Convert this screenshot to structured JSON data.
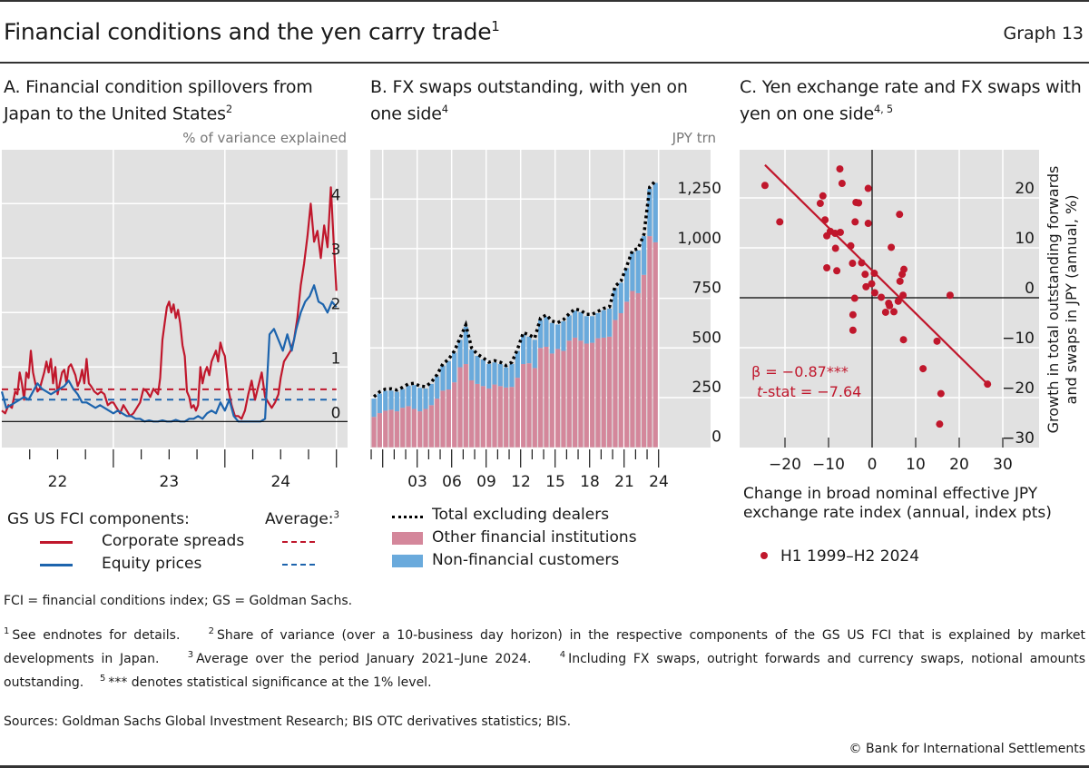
{
  "header": {
    "title": "Financial conditions and the yen carry trade",
    "title_sup": "1",
    "graph_number": "Graph 13"
  },
  "chart_data": [
    {
      "id": "A",
      "type": "line",
      "title": "A. Financial condition spillovers from Japan to the United States",
      "title_sup": "2",
      "ylabel": "% of variance explained",
      "ylim": [
        -0.5,
        5.0
      ],
      "yticks": [
        0,
        1,
        2,
        3,
        4
      ],
      "xlim": [
        2022.0,
        2025.1
      ],
      "xtick_labels": [
        {
          "label": "22",
          "x": 2022.5
        },
        {
          "label": "23",
          "x": 2023.5
        },
        {
          "label": "24",
          "x": 2024.5
        }
      ],
      "grid": true,
      "legend": {
        "heading": "GS US FCI components:",
        "avg_heading": "Average:",
        "avg_sup": "3",
        "items": [
          "Corporate spreads",
          "Equity prices"
        ]
      },
      "series": [
        {
          "name": "Corporate spreads",
          "color": "#c0172c",
          "average": 0.59,
          "x": [
            2022.0,
            2022.03,
            2022.06,
            2022.09,
            2022.12,
            2022.14,
            2022.16,
            2022.18,
            2022.2,
            2022.22,
            2022.24,
            2022.26,
            2022.28,
            2022.3,
            2022.32,
            2022.34,
            2022.36,
            2022.38,
            2022.4,
            2022.42,
            2022.44,
            2022.46,
            2022.48,
            2022.5,
            2022.52,
            2022.54,
            2022.56,
            2022.58,
            2022.6,
            2022.62,
            2022.64,
            2022.66,
            2022.68,
            2022.7,
            2022.72,
            2022.74,
            2022.76,
            2022.78,
            2022.8,
            2022.83,
            2022.86,
            2022.89,
            2022.92,
            2022.95,
            2022.98,
            2023.0,
            2023.03,
            2023.06,
            2023.09,
            2023.12,
            2023.15,
            2023.18,
            2023.21,
            2023.24,
            2023.27,
            2023.3,
            2023.33,
            2023.36,
            2023.38,
            2023.4,
            2023.42,
            2023.44,
            2023.46,
            2023.48,
            2023.5,
            2023.52,
            2023.54,
            2023.56,
            2023.58,
            2023.6,
            2023.62,
            2023.64,
            2023.66,
            2023.68,
            2023.7,
            2023.72,
            2023.74,
            2023.76,
            2023.78,
            2023.8,
            2023.82,
            2023.84,
            2023.86,
            2023.88,
            2023.9,
            2023.92,
            2023.94,
            2023.96,
            2023.98,
            2024.0,
            2024.03,
            2024.06,
            2024.09,
            2024.12,
            2024.15,
            2024.18,
            2024.21,
            2024.24,
            2024.27,
            2024.3,
            2024.33,
            2024.36,
            2024.39,
            2024.42,
            2024.45,
            2024.48,
            2024.5,
            2024.53,
            2024.56,
            2024.59,
            2024.62,
            2024.65,
            2024.68,
            2024.71,
            2024.74,
            2024.77,
            2024.8,
            2024.83,
            2024.86,
            2024.89,
            2024.92,
            2024.95,
            2024.98,
            2025.0
          ],
          "y": [
            0.2,
            0.15,
            0.3,
            0.25,
            0.55,
            0.5,
            0.9,
            0.7,
            0.4,
            0.9,
            0.8,
            1.3,
            0.9,
            0.7,
            0.55,
            0.6,
            0.75,
            0.9,
            1.1,
            0.9,
            1.15,
            0.7,
            1.0,
            0.5,
            0.7,
            0.9,
            0.95,
            0.7,
            1.0,
            1.05,
            0.95,
            0.85,
            0.65,
            0.75,
            0.95,
            0.7,
            1.15,
            0.7,
            0.65,
            0.55,
            0.5,
            0.55,
            0.5,
            0.3,
            0.35,
            0.35,
            0.25,
            0.15,
            0.3,
            0.2,
            0.1,
            0.15,
            0.25,
            0.35,
            0.6,
            0.55,
            0.45,
            0.6,
            0.55,
            0.5,
            0.8,
            1.5,
            1.8,
            2.1,
            2.2,
            2.0,
            2.15,
            1.9,
            2.05,
            1.8,
            1.4,
            1.2,
            0.55,
            0.45,
            0.25,
            0.3,
            0.2,
            0.3,
            1.0,
            0.7,
            0.9,
            1.0,
            0.85,
            1.1,
            1.2,
            1.3,
            1.1,
            1.45,
            1.3,
            1.2,
            0.6,
            0.3,
            0.1,
            0.1,
            0.05,
            0.2,
            0.5,
            0.75,
            0.4,
            0.65,
            0.9,
            0.45,
            0.35,
            0.25,
            0.35,
            0.5,
            0.8,
            1.1,
            1.2,
            1.3,
            1.5,
            1.9,
            2.5,
            2.9,
            3.4,
            4.0,
            3.3,
            3.5,
            3.0,
            3.6,
            3.2,
            4.3,
            3.1,
            2.4
          ]
        },
        {
          "name": "Equity prices",
          "color": "#1d64ad",
          "average": 0.4,
          "x": [
            2022.0,
            2022.04,
            2022.08,
            2022.12,
            2022.16,
            2022.2,
            2022.24,
            2022.28,
            2022.32,
            2022.36,
            2022.4,
            2022.44,
            2022.48,
            2022.52,
            2022.56,
            2022.6,
            2022.64,
            2022.68,
            2022.72,
            2022.76,
            2022.8,
            2022.84,
            2022.88,
            2022.92,
            2022.96,
            2023.0,
            2023.04,
            2023.08,
            2023.12,
            2023.16,
            2023.2,
            2023.24,
            2023.28,
            2023.32,
            2023.36,
            2023.4,
            2023.44,
            2023.48,
            2023.52,
            2023.56,
            2023.6,
            2023.64,
            2023.68,
            2023.72,
            2023.76,
            2023.8,
            2023.84,
            2023.88,
            2023.92,
            2023.96,
            2024.0,
            2024.04,
            2024.08,
            2024.12,
            2024.16,
            2024.2,
            2024.24,
            2024.28,
            2024.32,
            2024.36,
            2024.4,
            2024.44,
            2024.48,
            2024.52,
            2024.56,
            2024.6,
            2024.64,
            2024.68,
            2024.72,
            2024.76,
            2024.8,
            2024.84,
            2024.88,
            2024.92,
            2024.96,
            2025.0
          ],
          "y": [
            0.55,
            0.25,
            0.3,
            0.35,
            0.4,
            0.45,
            0.4,
            0.55,
            0.7,
            0.6,
            0.55,
            0.5,
            0.55,
            0.6,
            0.65,
            0.75,
            0.6,
            0.5,
            0.35,
            0.35,
            0.3,
            0.25,
            0.3,
            0.25,
            0.2,
            0.15,
            0.2,
            0.15,
            0.1,
            0.1,
            0.05,
            0.05,
            0.0,
            0.02,
            0.0,
            0.0,
            0.02,
            0.0,
            0.0,
            0.03,
            0.0,
            0.0,
            0.05,
            0.05,
            0.1,
            0.05,
            0.15,
            0.2,
            0.15,
            0.35,
            0.2,
            0.4,
            0.1,
            0.0,
            0.0,
            0.0,
            0.0,
            0.0,
            0.0,
            0.05,
            1.6,
            1.7,
            1.5,
            1.3,
            1.6,
            1.3,
            1.7,
            2.0,
            2.2,
            2.3,
            2.5,
            2.2,
            2.15,
            2.0,
            2.2,
            2.1
          ]
        }
      ]
    },
    {
      "id": "B",
      "type": "bar",
      "stacked": true,
      "title": "B. FX swaps outstanding, with yen on one side",
      "title_sup": "4",
      "ylabel": "JPY trn",
      "ylim": [
        0,
        1400
      ],
      "yticks": [
        0,
        250,
        500,
        750,
        1000,
        1250
      ],
      "ytick_labels": [
        "0",
        "250",
        "500",
        "750",
        "1,000",
        "1,250"
      ],
      "xtick_labels": [
        "03",
        "06",
        "09",
        "12",
        "15",
        "18",
        "21",
        "24"
      ],
      "grid": true,
      "categories_note": "half-yearly, H1 1999 to H2 2023",
      "series": [
        {
          "name": "Other financial institutions",
          "color": "#d4879b",
          "values": [
            153,
            172,
            184,
            189,
            181,
            199,
            207,
            193,
            181,
            193,
            212,
            245,
            285,
            291,
            327,
            403,
            419,
            337,
            319,
            308,
            296,
            316,
            308,
            301,
            304,
            350,
            419,
            423,
            399,
            500,
            506,
            472,
            495,
            485,
            537,
            552,
            537,
            522,
            526,
            549,
            552,
            557,
            641,
            675,
            733,
            787,
            776,
            868,
            1063,
            1032
          ]
        },
        {
          "name": "Non-financial customers",
          "color": "#6aaadc",
          "values": [
            92,
            98,
            100,
            96,
            98,
            94,
            103,
            120,
            118,
            103,
            107,
            112,
            126,
            143,
            149,
            138,
            188,
            154,
            141,
            134,
            123,
            111,
            111,
            101,
            115,
            135,
            149,
            134,
            142,
            141,
            151,
            154,
            123,
            149,
            127,
            135,
            143,
            138,
            134,
            126,
            138,
            141,
            161,
            153,
            169,
            195,
            215,
            195,
            238,
            299
          ]
        },
        {
          "name": "Total excluding dealers",
          "style": "dotted",
          "color": "#000000"
        }
      ],
      "legend": {
        "items": [
          "Total excluding dealers",
          "Other financial institutions",
          "Non-financial customers"
        ]
      }
    },
    {
      "id": "C",
      "type": "scatter",
      "title": "C. Yen exchange rate and FX swaps with yen on one side",
      "title_sup": "4, 5",
      "xlabel": "Change in broad nominal effective JPY exchange rate index (annual, index pts)",
      "ylabel": "Growth in total outstanding forwards and swaps in JPY (annual, %)",
      "xlim": [
        -30,
        35
      ],
      "ylim": [
        -30,
        30
      ],
      "xticks": [
        -20,
        -10,
        0,
        10,
        20,
        30
      ],
      "yticks": [
        -30,
        -20,
        -10,
        0,
        10,
        20
      ],
      "xtick_labels": [
        "−20",
        "−10",
        "0",
        "10",
        "20",
        "30"
      ],
      "ytick_labels": [
        "−30",
        "−20",
        "−10",
        "0",
        "10",
        "20"
      ],
      "grid": true,
      "color": "#c0172c",
      "annotation": {
        "beta": "β = −0.87***",
        "tstat_label": "t",
        "tstat_rest": "-stat = −7.64"
      },
      "regression": {
        "x": [
          -24.6,
          26.5
        ],
        "y": [
          26.6,
          -17.3
        ]
      },
      "legend": {
        "items": [
          "H1 1999–H2 2024"
        ]
      },
      "points": [
        [
          -24.6,
          22.5
        ],
        [
          -21.2,
          15.2
        ],
        [
          -7.4,
          25.8
        ],
        [
          -6.9,
          22.9
        ],
        [
          -0.9,
          21.9
        ],
        [
          -11.3,
          20.4
        ],
        [
          -11.9,
          18.9
        ],
        [
          -3.7,
          19.1
        ],
        [
          -3.1,
          19.0
        ],
        [
          -10.8,
          15.6
        ],
        [
          -3.9,
          15.2
        ],
        [
          -0.9,
          14.9
        ],
        [
          6.3,
          16.7
        ],
        [
          -9.6,
          13.3
        ],
        [
          -8.5,
          12.9
        ],
        [
          -7.3,
          13.1
        ],
        [
          -10.4,
          12.4
        ],
        [
          -8.4,
          9.9
        ],
        [
          -4.9,
          10.4
        ],
        [
          4.4,
          10.1
        ],
        [
          -4.5,
          6.9
        ],
        [
          -2.4,
          7.0
        ],
        [
          -10.4,
          6.0
        ],
        [
          -8.1,
          5.4
        ],
        [
          -1.6,
          4.7
        ],
        [
          0.5,
          4.9
        ],
        [
          7.3,
          5.7
        ],
        [
          6.9,
          4.7
        ],
        [
          6.4,
          3.3
        ],
        [
          -1.4,
          2.2
        ],
        [
          -0.1,
          2.8
        ],
        [
          0.6,
          1.0
        ],
        [
          2.1,
          0.1
        ],
        [
          7.1,
          0.5
        ],
        [
          6.0,
          -0.7
        ],
        [
          17.9,
          0.5
        ],
        [
          -4.0,
          -0.1
        ],
        [
          3.8,
          -1.1
        ],
        [
          4.0,
          -1.6
        ],
        [
          3.1,
          -2.9
        ],
        [
          5.0,
          -2.8
        ],
        [
          -4.4,
          -3.4
        ],
        [
          -4.4,
          -6.5
        ],
        [
          7.2,
          -8.4
        ],
        [
          14.9,
          -8.7
        ],
        [
          11.7,
          -14.2
        ],
        [
          26.5,
          -17.3
        ],
        [
          15.8,
          -19.2
        ],
        [
          15.5,
          -25.3
        ]
      ]
    }
  ],
  "footer": {
    "abbrev": "FCI = financial conditions index; GS = Goldman Sachs.",
    "notes": [
      {
        "n": "1",
        "text": "See endnotes for details."
      },
      {
        "n": "2",
        "text": "Share of variance (over a 10-business day horizon) in the respective components of the GS US FCI that is explained by market developments in Japan."
      },
      {
        "n": "3",
        "text": "Average over the period January 2021–June 2024."
      },
      {
        "n": "4",
        "text": "Including FX swaps, outright forwards and currency swaps, notional amounts outstanding."
      },
      {
        "n": "5",
        "text": "*** denotes statistical significance at the 1% level."
      }
    ],
    "sources": "Sources: Goldman Sachs Global Investment Research; BIS OTC derivatives statistics; BIS.",
    "copyright": "© Bank for International Settlements"
  }
}
